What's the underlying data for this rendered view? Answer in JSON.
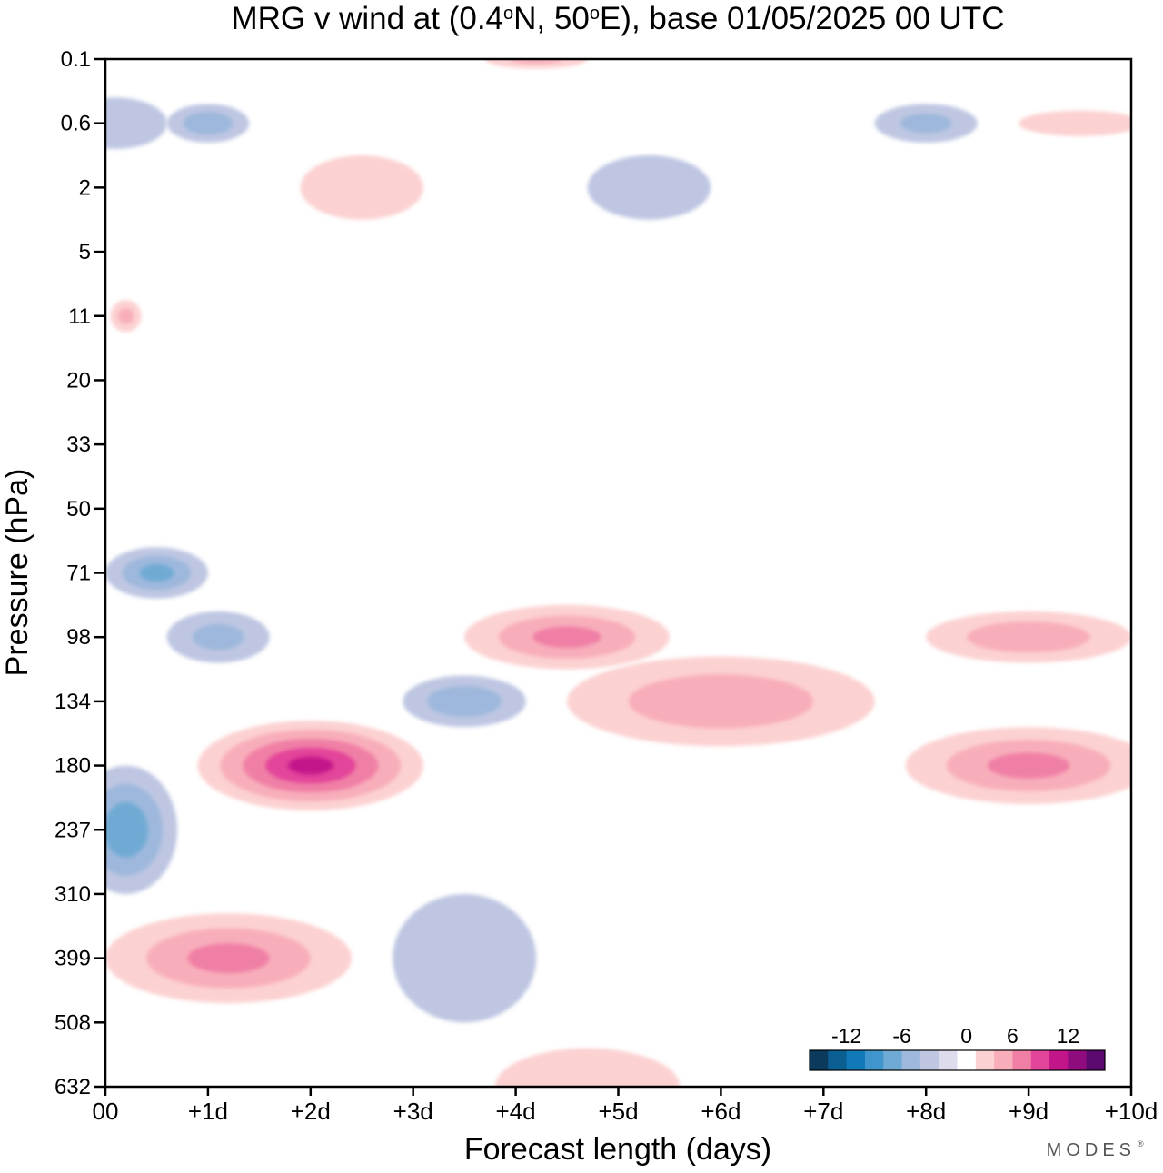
{
  "chart_data": {
    "type": "heatmap",
    "title_parts": {
      "before_lat": "MRG v wind at (0.4",
      "lat_hemisphere": "N, 50",
      "after_lon": "E),  base 01/05/2025  00 UTC",
      "degree_mark": "o"
    },
    "xlabel": "Forecast length (days)",
    "ylabel": "Pressure (hPa)",
    "x_ticks": [
      {
        "value": 0,
        "label": "00"
      },
      {
        "value": 1,
        "label": "+1d"
      },
      {
        "value": 2,
        "label": "+2d"
      },
      {
        "value": 3,
        "label": "+3d"
      },
      {
        "value": 4,
        "label": "+4d"
      },
      {
        "value": 5,
        "label": "+5d"
      },
      {
        "value": 6,
        "label": "+6d"
      },
      {
        "value": 7,
        "label": "+7d"
      },
      {
        "value": 8,
        "label": "+8d"
      },
      {
        "value": 9,
        "label": "+9d"
      },
      {
        "value": 10,
        "label": "+10d"
      }
    ],
    "xlim": [
      0,
      10
    ],
    "y_ticks": [
      "0.1",
      "0.6",
      "2",
      "5",
      "11",
      "20",
      "33",
      "50",
      "71",
      "98",
      "134",
      "180",
      "237",
      "310",
      "399",
      "508",
      "632"
    ],
    "y_scale": "model levels (irregular, top 0.1 hPa to bottom 632 hPa)",
    "colorbar": {
      "levels": [
        -16,
        -14,
        -12,
        -10,
        -8,
        -6,
        -4,
        -2,
        2,
        4,
        6,
        8,
        10,
        12,
        14,
        16
      ],
      "tick_labels": [
        {
          "value": -12,
          "label": "-12"
        },
        {
          "value": -6,
          "label": "-6"
        },
        {
          "value": 0,
          "label": "0"
        },
        {
          "value": 6,
          "label": "6"
        },
        {
          "value": 12,
          "label": "12"
        }
      ],
      "colors": [
        "#0b3a5c",
        "#0a5e91",
        "#1279b8",
        "#3f95cc",
        "#6faad4",
        "#9db8dc",
        "#bec6e2",
        "#dcdcec",
        "#ffffff",
        "#fcd1d1",
        "#f8aeba",
        "#f07fa6",
        "#e3459a",
        "#c2158a",
        "#8f0c7f",
        "#5a0a6e"
      ]
    },
    "contour_blobs": [
      {
        "day": 0.2,
        "level": "11",
        "ddays": 0.15,
        "dlevels": 0.25,
        "value": 4
      },
      {
        "day": 0.1,
        "level": "0.6",
        "ddays": 0.5,
        "dlevels": 0.4,
        "value": -3
      },
      {
        "day": 1.0,
        "level": "0.6",
        "ddays": 0.4,
        "dlevels": 0.3,
        "value": -5
      },
      {
        "day": 2.5,
        "level": "2",
        "ddays": 0.6,
        "dlevels": 0.5,
        "value": 3
      },
      {
        "day": 4.2,
        "level": "0.1",
        "ddays": 0.5,
        "dlevels": 0.15,
        "value": 4
      },
      {
        "day": 5.3,
        "level": "2",
        "ddays": 0.6,
        "dlevels": 0.5,
        "value": -3
      },
      {
        "day": 8.0,
        "level": "0.6",
        "ddays": 0.5,
        "dlevels": 0.3,
        "value": -4
      },
      {
        "day": 9.5,
        "level": "0.6",
        "ddays": 0.6,
        "dlevels": 0.2,
        "value": 3
      },
      {
        "day": 0.5,
        "level": "71",
        "ddays": 0.5,
        "dlevels": 0.4,
        "value": -6
      },
      {
        "day": 1.1,
        "level": "98",
        "ddays": 0.5,
        "dlevels": 0.4,
        "value": -4
      },
      {
        "day": 4.5,
        "level": "98",
        "ddays": 1.0,
        "dlevels": 0.5,
        "value": 6
      },
      {
        "day": 6.0,
        "level": "134",
        "ddays": 1.5,
        "dlevels": 0.7,
        "value": 5
      },
      {
        "day": 9.0,
        "level": "98",
        "ddays": 1.0,
        "dlevels": 0.4,
        "value": 5
      },
      {
        "day": 2.0,
        "level": "180",
        "ddays": 1.1,
        "dlevels": 0.7,
        "value": 10
      },
      {
        "day": 3.5,
        "level": "134",
        "ddays": 0.6,
        "dlevels": 0.4,
        "value": -5
      },
      {
        "day": 0.2,
        "level": "237",
        "ddays": 0.5,
        "dlevels": 1.0,
        "value": -7
      },
      {
        "day": 1.2,
        "level": "399",
        "ddays": 1.2,
        "dlevels": 0.7,
        "value": 6
      },
      {
        "day": 3.5,
        "level": "399",
        "ddays": 0.7,
        "dlevels": 1.0,
        "value": -3
      },
      {
        "day": 4.7,
        "level": "632",
        "ddays": 0.9,
        "dlevels": 0.6,
        "value": 3
      },
      {
        "day": 9.0,
        "level": "180",
        "ddays": 1.2,
        "dlevels": 0.6,
        "value": 6
      }
    ],
    "grid": false,
    "legend": "colorbar inside plot, bottom-right"
  },
  "brand": {
    "name": "MODES",
    "mark": "®"
  }
}
